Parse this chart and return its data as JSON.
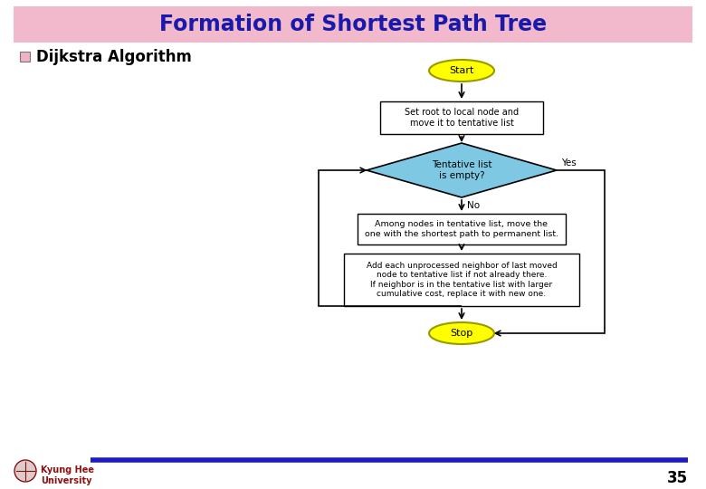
{
  "title": "Formation of Shortest Path Tree",
  "title_bg": "#f2b8cc",
  "title_color": "#1a1aaa",
  "title_fontsize": 17,
  "subtitle": "Dijkstra Algorithm",
  "subtitle_color": "#000000",
  "subtitle_fontsize": 12,
  "bg_color": "#ffffff",
  "start_stop_color": "#ffff00",
  "start_stop_edge": "#999900",
  "decision_color": "#7ec8e3",
  "decision_edge": "#000000",
  "process_color": "#ffffff",
  "process_edge": "#000000",
  "arrow_color": "#000000",
  "start_text": "Start",
  "box1_text": "Set root to local node and\nmove it to tentative list",
  "diamond_text": "Tentative list\nis empty?",
  "yes_label": "Yes",
  "no_label": "No",
  "box2_text": "Among nodes in tentative list, move the\none with the shortest path to permanent list.",
  "box3_text": "Add each unprocessed neighbor of last moved\nnode to tentative list if not already there.\nIf neighbor is in the tentative list with larger\ncumulative cost, replace it with new one.",
  "stop_text": "Stop",
  "footer_text": "Kyung Hee\nUniversity",
  "page_number": "35",
  "footer_line_color": "#1a1acc",
  "logo_color": "#8B1010"
}
